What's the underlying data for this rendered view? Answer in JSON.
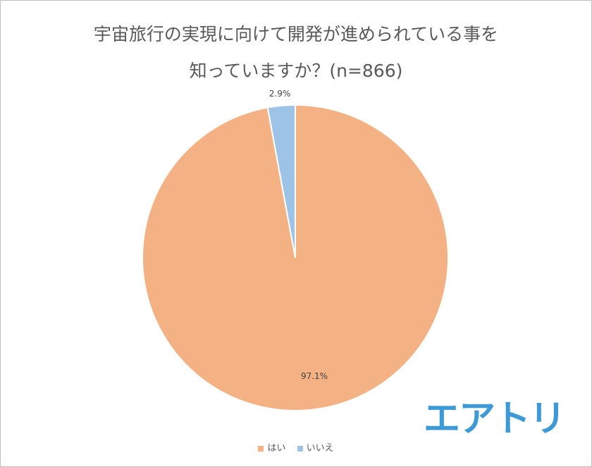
{
  "chart_data": {
    "type": "pie",
    "title": [
      "宇宙旅行の実現に向けて開発が進められている事を",
      "知っていますか？(n=866)"
    ],
    "categories": [
      "はい",
      "いいえ"
    ],
    "values": [
      97.1,
      2.9
    ],
    "labels": [
      "97.1%",
      "2.9%"
    ],
    "colors": [
      "#F4B183",
      "#9DC3E6"
    ],
    "legend_position": "bottom"
  },
  "logo": {
    "text": "エアトリ",
    "color": "#3d9ad6"
  }
}
